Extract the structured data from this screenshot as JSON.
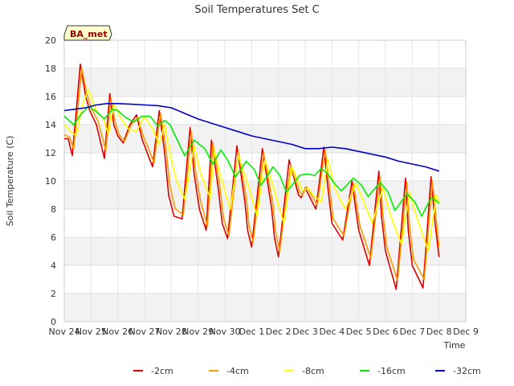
{
  "chart_data": {
    "type": "line",
    "title": "Soil Temperatures Set C",
    "xlabel": "Time",
    "ylabel": "Soil Temperature (C)",
    "annotation": "BA_met",
    "ylim": [
      0,
      20
    ],
    "yticks": [
      0,
      2,
      4,
      6,
      8,
      10,
      12,
      14,
      16,
      18,
      20
    ],
    "xlim": [
      0,
      15
    ],
    "xtick_labels": [
      "Nov 24",
      "Nov 25",
      "Nov 26",
      "Nov 27",
      "Nov 28",
      "Nov 29",
      "Nov 30",
      "Dec 1",
      "Dec 2",
      "Dec 3",
      "Dec 4",
      "Dec 5",
      "Dec 6",
      "Dec 7",
      "Dec 8",
      "Dec 9"
    ],
    "grid": true,
    "legend_position": "bottom",
    "series": [
      {
        "name": "-2cm",
        "color": "#dd0000",
        "x": [
          0,
          0.15,
          0.3,
          0.45,
          0.6,
          0.8,
          0.95,
          1.2,
          1.5,
          1.7,
          1.85,
          2.0,
          2.2,
          2.45,
          2.7,
          2.9,
          3.1,
          3.3,
          3.55,
          3.75,
          3.9,
          4.1,
          4.4,
          4.7,
          4.85,
          5.05,
          5.3,
          5.5,
          5.75,
          5.9,
          6.1,
          6.45,
          6.75,
          6.85,
          7.0,
          7.4,
          7.75,
          7.85,
          8.0,
          8.4,
          8.75,
          8.85,
          9.0,
          9.4,
          9.7,
          9.85,
          10.0,
          10.4,
          10.75,
          10.85,
          11.0,
          11.4,
          11.75,
          11.85,
          12.0,
          12.4,
          12.75,
          12.85,
          13.0,
          13.4,
          13.7,
          13.85,
          14.0
        ],
        "y": [
          13.0,
          13.0,
          11.8,
          15.0,
          18.3,
          16.0,
          15.0,
          14.0,
          11.6,
          16.2,
          14.0,
          13.2,
          12.7,
          14.0,
          14.7,
          13.0,
          12.0,
          11.0,
          15.0,
          12.0,
          9.0,
          7.5,
          7.3,
          13.8,
          10.5,
          8.0,
          6.5,
          12.9,
          9.5,
          7.0,
          5.9,
          12.5,
          8.5,
          6.5,
          5.3,
          12.3,
          8.0,
          6.0,
          4.6,
          11.5,
          9.0,
          8.8,
          9.5,
          8.0,
          12.4,
          9.5,
          7.0,
          5.8,
          10.0,
          8.5,
          6.5,
          4.0,
          10.7,
          7.5,
          5.0,
          2.3,
          10.2,
          6.5,
          4.0,
          2.4,
          10.3,
          7.0,
          4.6
        ]
      },
      {
        "name": "-4cm",
        "color": "#ff9900",
        "x": [
          0,
          0.2,
          0.35,
          0.5,
          0.65,
          0.85,
          1.0,
          1.25,
          1.55,
          1.75,
          1.9,
          2.05,
          2.25,
          2.5,
          2.75,
          2.95,
          3.15,
          3.35,
          3.6,
          3.8,
          3.95,
          4.15,
          4.45,
          4.75,
          4.9,
          5.1,
          5.35,
          5.55,
          5.8,
          5.95,
          6.15,
          6.5,
          6.8,
          6.9,
          7.05,
          7.45,
          7.8,
          7.9,
          8.05,
          8.45,
          8.8,
          8.9,
          9.05,
          9.45,
          9.75,
          9.9,
          10.05,
          10.45,
          10.8,
          10.9,
          11.05,
          11.45,
          11.8,
          11.9,
          12.05,
          12.45,
          12.8,
          12.9,
          13.05,
          13.45,
          13.75,
          13.9,
          14.0
        ],
        "y": [
          13.3,
          13.1,
          12.3,
          15.0,
          18.0,
          16.2,
          15.2,
          14.3,
          12.2,
          15.9,
          14.2,
          13.3,
          12.8,
          14.0,
          14.5,
          13.2,
          12.3,
          11.3,
          14.8,
          12.3,
          9.6,
          8.0,
          7.6,
          13.5,
          10.8,
          8.5,
          6.8,
          12.7,
          9.8,
          7.4,
          6.1,
          12.1,
          8.8,
          6.9,
          5.6,
          12.0,
          8.3,
          6.4,
          5.0,
          11.1,
          9.2,
          9.0,
          9.6,
          8.3,
          12.2,
          9.7,
          7.3,
          6.1,
          9.8,
          8.6,
          6.8,
          4.5,
          10.3,
          7.7,
          5.3,
          2.9,
          9.9,
          6.8,
          4.4,
          3.0,
          10.0,
          7.2,
          5.3
        ]
      },
      {
        "name": "-8cm",
        "color": "#ffff00",
        "x": [
          0,
          0.25,
          0.45,
          0.7,
          0.9,
          1.2,
          1.45,
          1.65,
          1.85,
          2.1,
          2.4,
          2.7,
          3.0,
          3.3,
          3.55,
          3.75,
          3.95,
          4.2,
          4.5,
          4.85,
          5.1,
          5.45,
          5.6,
          5.85,
          6.2,
          6.5,
          6.9,
          7.2,
          7.5,
          7.9,
          8.2,
          8.5,
          8.9,
          9.1,
          9.3,
          9.6,
          9.85,
          10.1,
          10.5,
          10.9,
          11.2,
          11.5,
          11.9,
          12.2,
          12.6,
          12.9,
          13.2,
          13.6,
          13.9,
          14.0
        ],
        "y": [
          14.0,
          13.5,
          13.2,
          15.5,
          16.5,
          15.0,
          14.5,
          13.3,
          15.5,
          14.5,
          13.7,
          13.5,
          14.6,
          13.7,
          12.6,
          14.0,
          12.0,
          10.0,
          8.7,
          12.5,
          10.5,
          8.8,
          12.2,
          10.3,
          8.0,
          11.8,
          9.5,
          7.5,
          11.5,
          9.0,
          7.0,
          11.0,
          9.3,
          9.5,
          9.0,
          8.5,
          11.5,
          9.5,
          8.0,
          9.8,
          8.5,
          7.0,
          9.5,
          7.5,
          5.5,
          9.2,
          7.2,
          5.0,
          9.0,
          8.5
        ]
      },
      {
        "name": "-16cm",
        "color": "#00ee00",
        "x": [
          0,
          0.35,
          0.65,
          0.9,
          1.15,
          1.5,
          1.8,
          2.0,
          2.3,
          2.6,
          2.9,
          3.2,
          3.5,
          3.75,
          3.95,
          4.15,
          4.5,
          4.85,
          5.05,
          5.25,
          5.55,
          5.85,
          6.1,
          6.4,
          6.8,
          7.1,
          7.35,
          7.8,
          8.05,
          8.3,
          8.8,
          9.05,
          9.35,
          9.6,
          9.85,
          10.1,
          10.35,
          10.8,
          11.1,
          11.35,
          11.8,
          12.1,
          12.35,
          12.8,
          13.1,
          13.35,
          13.7,
          13.9,
          14.0
        ],
        "y": [
          14.6,
          14.0,
          14.8,
          15.3,
          15.0,
          14.4,
          15.1,
          15.0,
          14.5,
          14.2,
          14.6,
          14.6,
          13.9,
          14.3,
          14.0,
          13.2,
          11.8,
          12.9,
          12.6,
          12.3,
          11.2,
          12.2,
          11.5,
          10.3,
          11.4,
          10.8,
          9.7,
          11.0,
          10.4,
          9.2,
          10.4,
          10.5,
          10.4,
          10.9,
          10.5,
          9.8,
          9.3,
          10.2,
          9.7,
          8.9,
          9.9,
          9.2,
          7.9,
          9.1,
          8.5,
          7.5,
          8.8,
          8.6,
          8.4
        ]
      },
      {
        "name": "-32cm",
        "color": "#0000cc",
        "x": [
          0,
          0.4,
          0.8,
          1.2,
          1.6,
          2.0,
          2.5,
          3.0,
          3.5,
          4.0,
          4.5,
          5.0,
          5.5,
          6.0,
          6.5,
          7.0,
          7.5,
          8.0,
          8.5,
          9.0,
          9.5,
          10.0,
          10.5,
          11.0,
          11.5,
          12.0,
          12.5,
          13.0,
          13.5,
          14.0
        ],
        "y": [
          15.0,
          15.1,
          15.2,
          15.4,
          15.5,
          15.5,
          15.45,
          15.4,
          15.35,
          15.2,
          14.8,
          14.4,
          14.1,
          13.8,
          13.5,
          13.2,
          13.0,
          12.8,
          12.6,
          12.3,
          12.3,
          12.4,
          12.3,
          12.1,
          11.9,
          11.7,
          11.4,
          11.2,
          11.0,
          10.7
        ]
      }
    ]
  }
}
